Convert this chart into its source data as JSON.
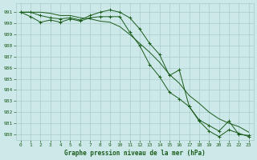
{
  "title": "Graphe pression niveau de la mer (hPa)",
  "bg_color": "#cce8e8",
  "grid_color": "#aacccc",
  "line_color": "#1a5c1a",
  "xlim": [
    -0.5,
    23.5
  ],
  "ylim": [
    979.5,
    991.8
  ],
  "yticks": [
    980,
    981,
    982,
    983,
    984,
    985,
    986,
    987,
    988,
    989,
    990,
    991
  ],
  "xticks": [
    0,
    1,
    2,
    3,
    4,
    5,
    6,
    7,
    8,
    9,
    10,
    11,
    12,
    13,
    14,
    15,
    16,
    17,
    18,
    19,
    20,
    21,
    22,
    23
  ],
  "series1_x": [
    0,
    1,
    2,
    3,
    4,
    5,
    6,
    7,
    8,
    9,
    10,
    11,
    12,
    13,
    14,
    15,
    16,
    17,
    18,
    19,
    20,
    21,
    22,
    23
  ],
  "series1_y": [
    991.0,
    991.0,
    990.7,
    990.5,
    990.4,
    990.5,
    990.3,
    990.7,
    991.0,
    991.2,
    991.0,
    990.5,
    989.5,
    988.2,
    987.2,
    985.3,
    985.8,
    982.5,
    981.2,
    980.3,
    979.8,
    980.4,
    980.1,
    979.8
  ],
  "series2_x": [
    0,
    1,
    2,
    3,
    4,
    5,
    6,
    7,
    8,
    9,
    10,
    11,
    12,
    13,
    14,
    15,
    16,
    17,
    18,
    19,
    20,
    21,
    22,
    23
  ],
  "series2_y": [
    991.0,
    990.6,
    990.1,
    990.3,
    990.1,
    990.4,
    990.2,
    990.5,
    990.6,
    990.6,
    990.6,
    989.2,
    988.0,
    986.3,
    985.2,
    983.8,
    983.2,
    982.5,
    981.3,
    980.8,
    980.3,
    981.2,
    980.0,
    979.9
  ],
  "series3_x": [
    0,
    1,
    2,
    3,
    4,
    5,
    6,
    7,
    8,
    9,
    10,
    11,
    12,
    13,
    14,
    15,
    16,
    17,
    18,
    19,
    20,
    21,
    22,
    23
  ],
  "series3_y": [
    991.0,
    991.0,
    991.0,
    990.9,
    990.7,
    990.7,
    990.5,
    990.4,
    990.2,
    990.1,
    989.7,
    989.0,
    988.2,
    987.4,
    986.5,
    985.4,
    984.6,
    983.5,
    982.8,
    982.0,
    981.4,
    981.0,
    980.7,
    980.2
  ]
}
